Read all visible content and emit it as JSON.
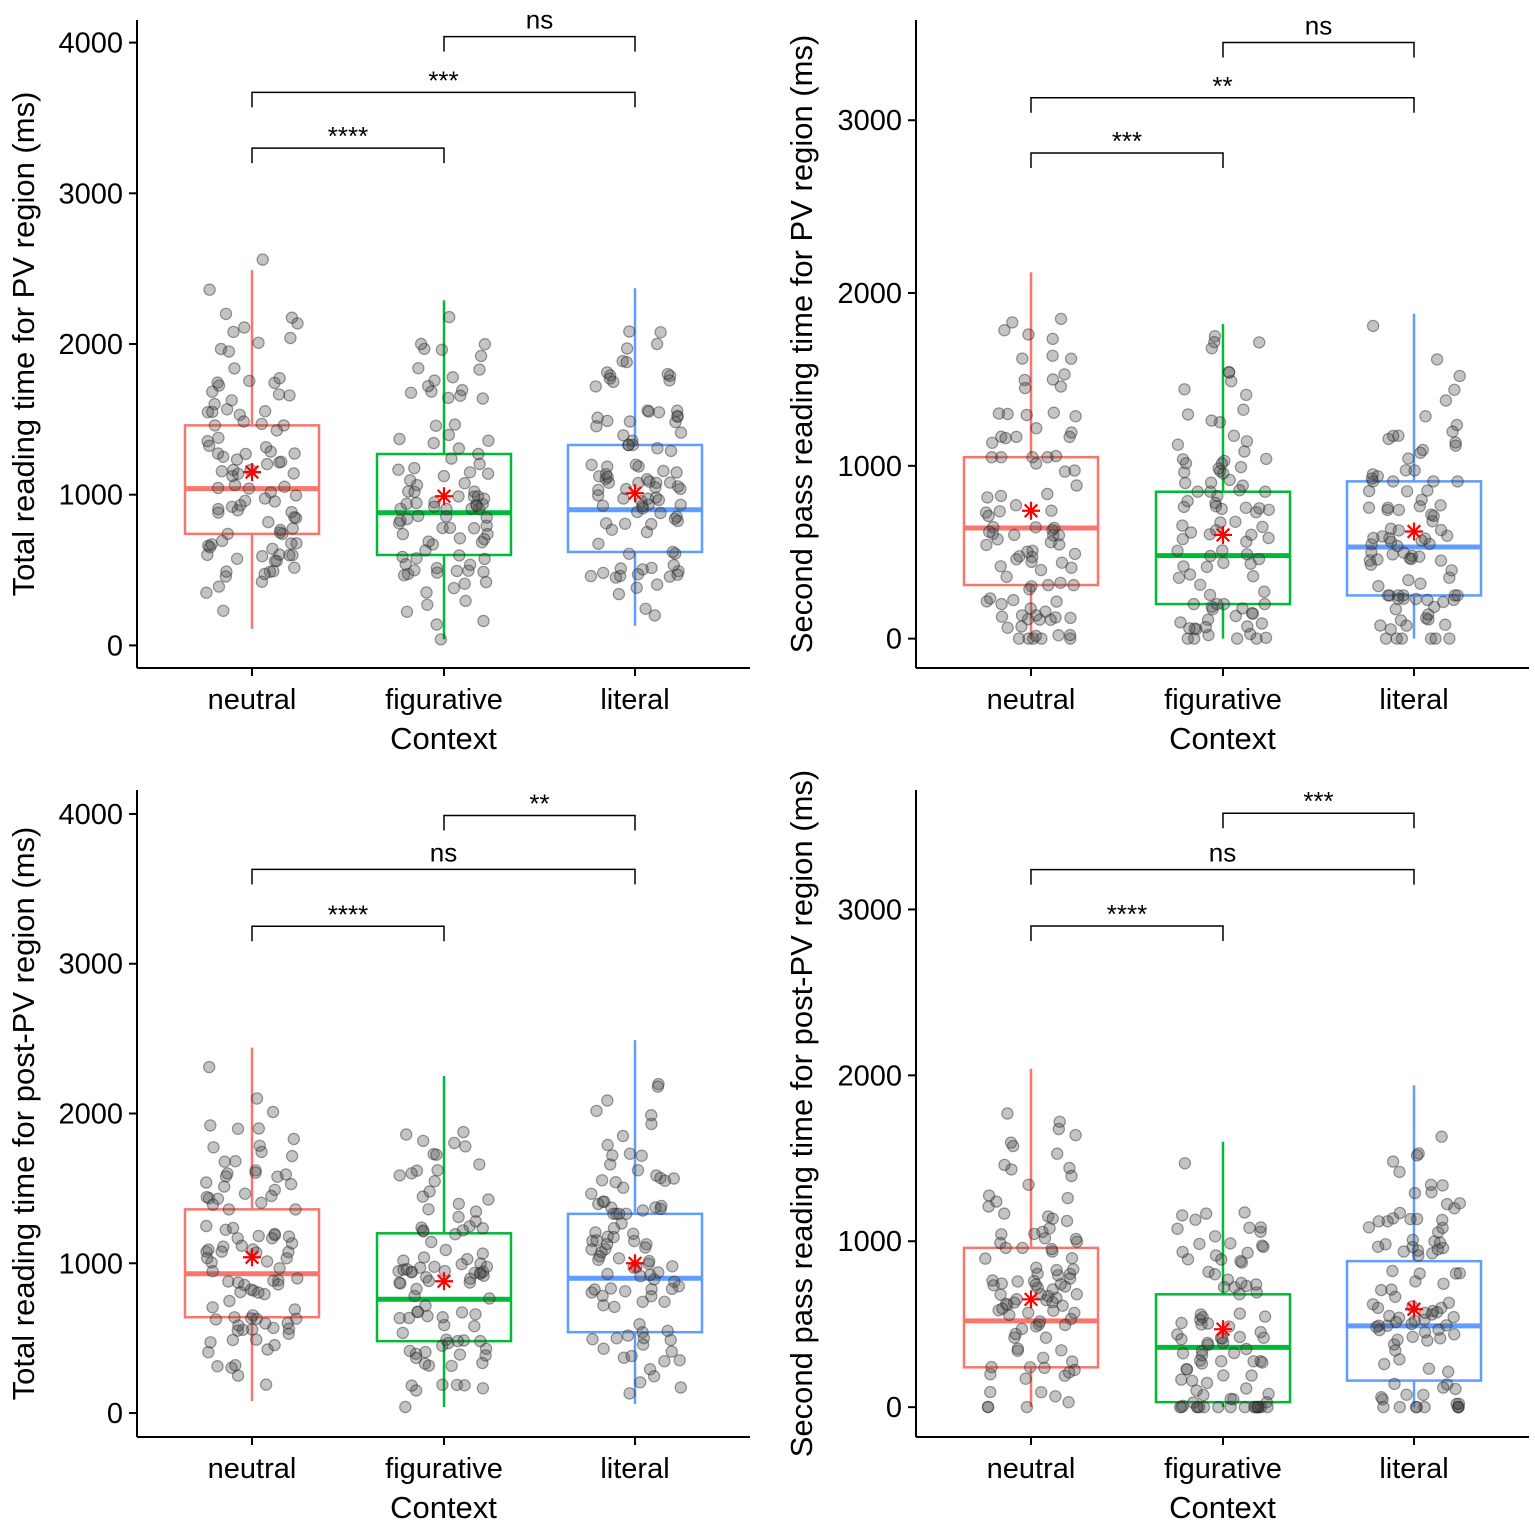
{
  "figure": {
    "colors": {
      "neutral": "#F8766D",
      "figurative": "#00BA38",
      "literal": "#619CFF",
      "points": "#333333",
      "mean": "#FF0000"
    }
  },
  "chart_data": [
    {
      "type": "boxplot",
      "title": "",
      "xlabel": "Context",
      "ylabel": "Total reading time for PV region (ms)",
      "categories": [
        "neutral",
        "figurative",
        "literal"
      ],
      "ylim": [
        -150,
        4150
      ],
      "yticks": [
        0,
        1000,
        2000,
        3000,
        4000
      ],
      "boxes": [
        {
          "min": 110,
          "q1": 740,
          "median": 1040,
          "q3": 1460,
          "max": 2490,
          "mean": 1150
        },
        {
          "min": 40,
          "q1": 600,
          "median": 880,
          "q3": 1270,
          "max": 2290,
          "mean": 990
        },
        {
          "min": 130,
          "q1": 620,
          "median": 900,
          "q3": 1330,
          "max": 2370,
          "mean": 1010
        }
      ],
      "comparisons": [
        {
          "from": "neutral",
          "to": "figurative",
          "label": "****",
          "y": 3300
        },
        {
          "from": "neutral",
          "to": "literal",
          "label": "***",
          "y": 3670
        },
        {
          "from": "figurative",
          "to": "literal",
          "label": "ns",
          "y": 4040
        }
      ],
      "outliers": [
        [
          2560,
          2360,
          2200,
          2080,
          2040,
          1950,
          390,
          350,
          490
        ],
        [
          2000,
          1830,
          1780,
          380,
          420
        ],
        [
          2000,
          1970,
          1880,
          1800,
          450,
          460
        ]
      ],
      "n_points": 90
    },
    {
      "type": "boxplot",
      "title": "",
      "xlabel": "Context",
      "ylabel": "Second pass reading time for PV region (ms)",
      "categories": [
        "neutral",
        "figurative",
        "literal"
      ],
      "ylim": [
        -170,
        3580
      ],
      "yticks": [
        0,
        1000,
        2000,
        3000
      ],
      "boxes": [
        {
          "min": 0,
          "q1": 310,
          "median": 640,
          "q3": 1050,
          "max": 2120,
          "mean": 740
        },
        {
          "min": 0,
          "q1": 200,
          "median": 480,
          "q3": 850,
          "max": 1820,
          "mean": 600
        },
        {
          "min": 0,
          "q1": 250,
          "median": 530,
          "q3": 910,
          "max": 1880,
          "mean": 620
        }
      ],
      "comparisons": [
        {
          "from": "neutral",
          "to": "figurative",
          "label": "***",
          "y": 2810
        },
        {
          "from": "neutral",
          "to": "literal",
          "label": "**",
          "y": 3130
        },
        {
          "from": "figurative",
          "to": "literal",
          "label": "ns",
          "y": 3450
        }
      ],
      "outliers": [
        [
          1850,
          1830,
          1760,
          1620,
          1450,
          20,
          70
        ],
        [
          1750,
          1680,
          1540,
          1490,
          60,
          70
        ],
        [
          1810,
          1520,
          1440,
          140,
          170
        ]
      ],
      "n_points": 90
    },
    {
      "type": "boxplot",
      "title": "",
      "xlabel": "Context",
      "ylabel": "Total reading time for post-PV region (ms)",
      "categories": [
        "neutral",
        "figurative",
        "literal"
      ],
      "ylim": [
        -160,
        4160
      ],
      "yticks": [
        0,
        1000,
        2000,
        3000,
        4000
      ],
      "boxes": [
        {
          "min": 80,
          "q1": 640,
          "median": 930,
          "q3": 1360,
          "max": 2440,
          "mean": 1040
        },
        {
          "min": 40,
          "q1": 480,
          "median": 760,
          "q3": 1200,
          "max": 2250,
          "mean": 880
        },
        {
          "min": 60,
          "q1": 540,
          "median": 900,
          "q3": 1330,
          "max": 2490,
          "mean": 1000
        }
      ],
      "comparisons": [
        {
          "from": "neutral",
          "to": "figurative",
          "label": "****",
          "y": 3250
        },
        {
          "from": "neutral",
          "to": "literal",
          "label": "ns",
          "y": 3630
        },
        {
          "from": "figurative",
          "to": "literal",
          "label": "**",
          "y": 3990
        }
      ],
      "outliers": [
        [
          2310,
          2100,
          2010,
          1900,
          1830,
          250,
          190
        ],
        [
          1860,
          1780,
          1660,
          330,
          390
        ],
        [
          1930,
          1850,
          1720,
          380,
          410
        ]
      ],
      "n_points": 90
    },
    {
      "type": "boxplot",
      "title": "",
      "xlabel": "Context",
      "ylabel": "Second pass reading time for post-PV region (ms)",
      "categories": [
        "neutral",
        "figurative",
        "literal"
      ],
      "ylim": [
        -180,
        3720
      ],
      "yticks": [
        0,
        1000,
        2000,
        3000
      ],
      "boxes": [
        {
          "min": 0,
          "q1": 240,
          "median": 520,
          "q3": 960,
          "max": 2040,
          "mean": 650
        },
        {
          "min": 0,
          "q1": 30,
          "median": 360,
          "q3": 680,
          "max": 1600,
          "mean": 470
        },
        {
          "min": 0,
          "q1": 160,
          "median": 490,
          "q3": 880,
          "max": 1940,
          "mean": 590
        }
      ],
      "comparisons": [
        {
          "from": "neutral",
          "to": "figurative",
          "label": "****",
          "y": 2900
        },
        {
          "from": "neutral",
          "to": "literal",
          "label": "ns",
          "y": 3240
        },
        {
          "from": "figurative",
          "to": "literal",
          "label": "***",
          "y": 3580
        }
      ],
      "outliers": [
        [
          1770,
          1720,
          1640,
          1460,
          1340,
          1260,
          30,
          90
        ],
        [
          1470,
          1130,
          80,
          100
        ],
        [
          1630,
          1340,
          1290,
          20,
          60
        ]
      ],
      "n_points": 90
    }
  ]
}
